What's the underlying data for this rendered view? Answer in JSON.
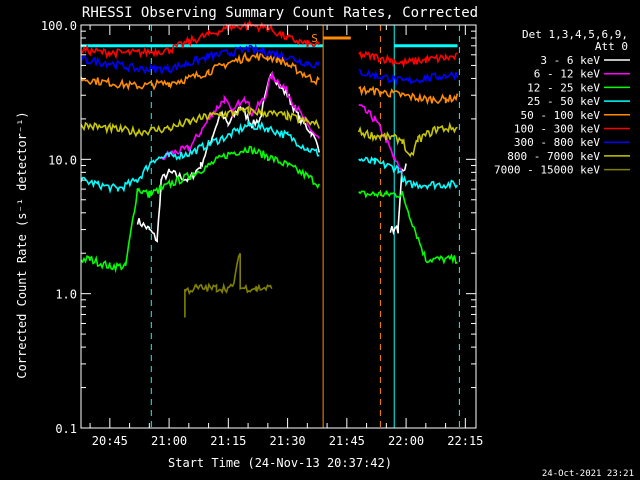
{
  "chart_data": {
    "type": "line",
    "title": "RHESSI Observing Summary Count Rates, Corrected",
    "xlabel": "Start Time (24-Nov-13 20:37:42)",
    "ylabel": "Corrected Count Rate (s⁻¹ detector⁻¹)",
    "yscale": "log",
    "ylim": [
      0.1,
      100
    ],
    "xlim_minutes": [
      20.7,
      21.38
    ],
    "xlim": [
      "20:37:42",
      "22:17:42"
    ],
    "y_ticks": [
      {
        "value": 0.1,
        "label": "0.1"
      },
      {
        "value": 1,
        "label": "1.0"
      },
      {
        "value": 10,
        "label": "10.0"
      },
      {
        "value": 100,
        "label": "100.0"
      }
    ],
    "x_ticks": [
      {
        "value": "20:45",
        "label": "20:45"
      },
      {
        "value": "21:00",
        "label": "21:00"
      },
      {
        "value": "21:15",
        "label": "21:15"
      },
      {
        "value": "21:30",
        "label": "21:30"
      },
      {
        "value": "21:45",
        "label": "21:45"
      },
      {
        "value": "22:00",
        "label": "22:00"
      },
      {
        "value": "22:15",
        "label": "22:15"
      }
    ],
    "legend_header": [
      "Det 1,3,4,5,6,9,",
      "Att 0"
    ],
    "legend_position": "right",
    "annotation": "S",
    "timestamp": "24-Oct-2021 23:21",
    "vlines": [
      {
        "time": "20:37:42",
        "style": "solid",
        "color": "#00ffff"
      },
      {
        "time": "20:55:30",
        "style": "dashed",
        "color": "#00ffff"
      },
      {
        "time": "21:39:00",
        "style": "solid",
        "color": "#ff8c00"
      },
      {
        "time": "21:53:30",
        "style": "dashed",
        "color": "#ff8c00"
      },
      {
        "time": "21:57:00",
        "style": "solid",
        "color": "#00ffff"
      },
      {
        "time": "22:13:30",
        "style": "dashed",
        "color": "#00ffff"
      }
    ],
    "flag_bars": [
      {
        "start": "20:37:42",
        "end": "21:39:00",
        "color": "#00ffff",
        "value": 70
      },
      {
        "start": "21:39:00",
        "end": "21:46:00",
        "color": "#ff8c00",
        "value": 80
      },
      {
        "start": "21:57:00",
        "end": "22:13:00",
        "color": "#00ffff",
        "value": 70
      }
    ],
    "series": [
      {
        "name": "3 - 6 keV",
        "color": "#ffffff",
        "points": [
          [
            "20:52",
            3.5
          ],
          [
            "20:55",
            3
          ],
          [
            "20:57",
            2.5
          ],
          [
            "20:58",
            7
          ],
          [
            "21:00",
            8
          ],
          [
            "21:05",
            7
          ],
          [
            "21:08",
            9
          ],
          [
            "21:11",
            15
          ],
          [
            "21:13",
            22
          ],
          [
            "21:15",
            18
          ],
          [
            "21:18",
            25
          ],
          [
            "21:21",
            18
          ],
          [
            "21:23",
            20
          ],
          [
            "21:26",
            45
          ],
          [
            "21:28",
            35
          ],
          [
            "21:30",
            30
          ],
          [
            "21:33",
            20
          ],
          [
            "21:36",
            16
          ],
          [
            "21:38",
            12
          ]
        ],
        "points2": [
          [
            "21:56",
            3
          ],
          [
            "21:58",
            3
          ],
          [
            "21:59",
            8
          ],
          [
            "22:00",
            9
          ]
        ]
      },
      {
        "name": "6 - 12 keV",
        "color": "#ff00ff",
        "points": [
          [
            "20:58",
            10
          ],
          [
            "21:00",
            11
          ],
          [
            "21:05",
            12
          ],
          [
            "21:08",
            16
          ],
          [
            "21:11",
            22
          ],
          [
            "21:14",
            28
          ],
          [
            "21:16",
            22
          ],
          [
            "21:19",
            30
          ],
          [
            "21:21",
            22
          ],
          [
            "21:24",
            28
          ],
          [
            "21:26",
            42
          ],
          [
            "21:29",
            35
          ],
          [
            "21:32",
            25
          ],
          [
            "21:35",
            18
          ],
          [
            "21:38",
            14
          ]
        ],
        "points2": [
          [
            "21:48",
            25
          ],
          [
            "21:52",
            20
          ],
          [
            "21:55",
            14
          ],
          [
            "21:57",
            10
          ],
          [
            "21:59",
            8
          ]
        ]
      },
      {
        "name": "12 - 25 keV",
        "color": "#00ff00",
        "points": [
          [
            "20:37:42",
            1.8
          ],
          [
            "20:40",
            1.8
          ],
          [
            "20:45",
            1.6
          ],
          [
            "20:49",
            1.6
          ],
          [
            "20:52",
            6
          ],
          [
            "20:55",
            5.5
          ],
          [
            "20:58",
            6
          ],
          [
            "21:00",
            6.5
          ],
          [
            "21:05",
            7.5
          ],
          [
            "21:10",
            9
          ],
          [
            "21:15",
            11
          ],
          [
            "21:20",
            12
          ],
          [
            "21:25",
            10.5
          ],
          [
            "21:30",
            9
          ],
          [
            "21:35",
            7.5
          ],
          [
            "21:38",
            6.5
          ]
        ],
        "points2": [
          [
            "21:48",
            5.5
          ],
          [
            "21:52",
            5.5
          ],
          [
            "21:55",
            5.5
          ],
          [
            "21:59",
            5.5
          ],
          [
            "22:05",
            1.8
          ],
          [
            "22:13",
            1.8
          ]
        ]
      },
      {
        "name": "25 - 50 keV",
        "color": "#00ffff",
        "points": [
          [
            "20:37:42",
            7
          ],
          [
            "20:42",
            6.5
          ],
          [
            "20:47",
            6
          ],
          [
            "20:52",
            7
          ],
          [
            "20:56",
            10
          ],
          [
            "21:00",
            10.5
          ],
          [
            "21:05",
            11
          ],
          [
            "21:10",
            13
          ],
          [
            "21:15",
            15
          ],
          [
            "21:20",
            18
          ],
          [
            "21:25",
            17
          ],
          [
            "21:30",
            15
          ],
          [
            "21:35",
            12
          ],
          [
            "21:38",
            11
          ]
        ],
        "points2": [
          [
            "21:48",
            10
          ],
          [
            "21:52",
            9.5
          ],
          [
            "21:55",
            9
          ],
          [
            "21:58",
            8.5
          ],
          [
            "22:00",
            6.5
          ],
          [
            "22:05",
            6.5
          ],
          [
            "22:13",
            6.5
          ]
        ]
      },
      {
        "name": "50 - 100 keV",
        "color": "#ff8c00",
        "points": [
          [
            "20:37:42",
            40
          ],
          [
            "20:45",
            37
          ],
          [
            "20:52",
            35
          ],
          [
            "21:00",
            37
          ],
          [
            "21:05",
            40
          ],
          [
            "21:10",
            45
          ],
          [
            "21:15",
            52
          ],
          [
            "21:20",
            58
          ],
          [
            "21:25",
            58
          ],
          [
            "21:28",
            55
          ],
          [
            "21:32",
            47
          ],
          [
            "21:36",
            40
          ],
          [
            "21:38",
            38
          ]
        ],
        "points2": [
          [
            "21:48",
            33
          ],
          [
            "21:52",
            32
          ],
          [
            "21:56",
            31
          ],
          [
            "21:59",
            30
          ],
          [
            "22:05",
            28
          ],
          [
            "22:10",
            28
          ],
          [
            "22:13",
            29
          ]
        ]
      },
      {
        "name": "100 - 300 keV",
        "color": "#ff0000",
        "points": [
          [
            "20:37:42",
            65
          ],
          [
            "20:45",
            62
          ],
          [
            "20:52",
            62
          ],
          [
            "21:00",
            65
          ],
          [
            "21:05",
            75
          ],
          [
            "21:10",
            85
          ],
          [
            "21:15",
            95
          ],
          [
            "21:20",
            100
          ],
          [
            "21:25",
            95
          ],
          [
            "21:30",
            80
          ],
          [
            "21:35",
            72
          ],
          [
            "21:38",
            70
          ]
        ],
        "points2": [
          [
            "21:48",
            60
          ],
          [
            "21:52",
            58
          ],
          [
            "21:56",
            55
          ],
          [
            "21:59",
            52
          ],
          [
            "22:05",
            55
          ],
          [
            "22:10",
            57
          ],
          [
            "22:13",
            58
          ]
        ]
      },
      {
        "name": "300 - 800 keV",
        "color": "#0000ff",
        "points": [
          [
            "20:37:42",
            55
          ],
          [
            "20:45",
            52
          ],
          [
            "20:52",
            47
          ],
          [
            "21:00",
            47
          ],
          [
            "21:05",
            52
          ],
          [
            "21:10",
            58
          ],
          [
            "21:15",
            62
          ],
          [
            "21:20",
            66
          ],
          [
            "21:25",
            63
          ],
          [
            "21:30",
            58
          ],
          [
            "21:35",
            52
          ],
          [
            "21:38",
            50
          ]
        ],
        "points2": [
          [
            "21:48",
            45
          ],
          [
            "21:52",
            42
          ],
          [
            "21:56",
            40
          ],
          [
            "21:59",
            38
          ],
          [
            "22:05",
            40
          ],
          [
            "22:10",
            42
          ],
          [
            "22:13",
            43
          ]
        ]
      },
      {
        "name": "800 - 7000 keV",
        "color": "#c8c800",
        "points": [
          [
            "20:37:42",
            18
          ],
          [
            "20:45",
            17
          ],
          [
            "20:52",
            16
          ],
          [
            "21:00",
            17
          ],
          [
            "21:05",
            19
          ],
          [
            "21:10",
            21
          ],
          [
            "21:15",
            22
          ],
          [
            "21:20",
            23
          ],
          [
            "21:25",
            22
          ],
          [
            "21:30",
            21
          ],
          [
            "21:35",
            19
          ],
          [
            "21:38",
            18
          ]
        ],
        "points2": [
          [
            "21:48",
            16
          ],
          [
            "21:52",
            15
          ],
          [
            "21:56",
            14.5
          ],
          [
            "21:59",
            14
          ],
          [
            "22:01",
            10
          ],
          [
            "22:03",
            14
          ],
          [
            "22:08",
            17
          ],
          [
            "22:13",
            17
          ]
        ]
      },
      {
        "name": "7000 - 15000 keV",
        "color": "#808000",
        "points": [
          [
            "21:04",
            0.7
          ],
          [
            "21:04",
            1.05
          ],
          [
            "21:07",
            1.1
          ],
          [
            "21:12",
            1.1
          ],
          [
            "21:16",
            1.1
          ],
          [
            "21:18",
            2
          ],
          [
            "21:18",
            1.1
          ],
          [
            "21:22",
            1.1
          ],
          [
            "21:26",
            1.1
          ]
        ],
        "points2": []
      }
    ]
  }
}
